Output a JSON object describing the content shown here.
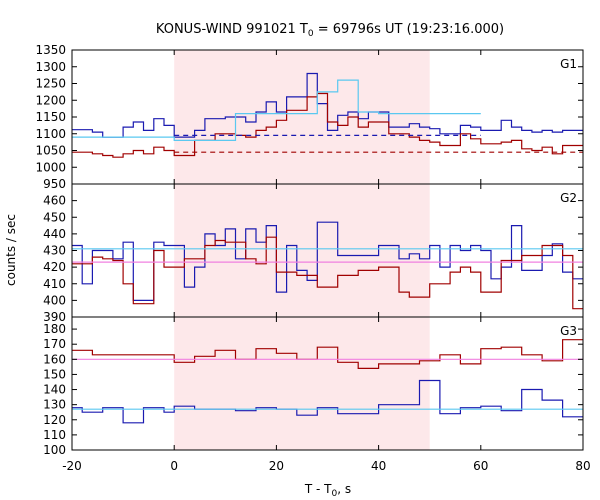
{
  "chart_data": {
    "type": "line",
    "title": {
      "main": "KONUS-WIND 991021 T",
      "sub": "0",
      "rest": " = 69796s UT (19:23:16.000)"
    },
    "xlabel": {
      "main": "T - T",
      "sub": "0",
      "rest": ", s"
    },
    "ylabel": "counts / sec",
    "xlim": [
      -20,
      80
    ],
    "xticks": [
      -20,
      0,
      20,
      40,
      60,
      80
    ],
    "shaded_interval": [
      0,
      50
    ],
    "colors": {
      "red": "#a00000",
      "blue": "#1a1ab0",
      "lightblue": "#5ac8f0",
      "pink": "#f080e0",
      "shade": "#fde8ea"
    },
    "bin_edges": [
      -20,
      -18,
      -16,
      -14,
      -12,
      -10,
      -8,
      -6,
      -4,
      -2,
      0,
      2,
      4,
      6,
      8,
      10,
      12,
      14,
      16,
      18,
      20,
      22,
      24,
      26,
      28,
      30,
      32,
      34,
      36,
      38,
      40,
      42,
      44,
      46,
      48,
      50,
      52,
      54,
      56,
      58,
      60,
      62,
      64,
      66,
      68,
      70,
      72,
      74,
      76,
      78,
      80
    ],
    "panels": [
      {
        "label": "G1",
        "ylim": [
          950,
          1350
        ],
        "yticks": [
          950,
          1000,
          1050,
          1100,
          1150,
          1200,
          1250,
          1300,
          1350
        ],
        "series": [
          {
            "color": "blue",
            "values": [
              1112,
              1112,
              1105,
              1090,
              1090,
              1120,
              1135,
              1110,
              1145,
              1125,
              1090,
              1090,
              1110,
              1145,
              1145,
              1150,
              1150,
              1135,
              1165,
              1195,
              1165,
              1210,
              1210,
              1280,
              1190,
              1110,
              1155,
              1165,
              1145,
              1165,
              1165,
              1120,
              1120,
              1130,
              1120,
              1115,
              1100,
              1100,
              1125,
              1120,
              1110,
              1110,
              1140,
              1120,
              1110,
              1105,
              1110,
              1105,
              1110,
              1110
            ]
          },
          {
            "color": "red",
            "values": [
              1045,
              1045,
              1040,
              1035,
              1030,
              1040,
              1050,
              1040,
              1060,
              1050,
              1035,
              1035,
              1080,
              1080,
              1100,
              1100,
              1095,
              1090,
              1110,
              1120,
              1140,
              1170,
              1170,
              1210,
              1220,
              1135,
              1125,
              1150,
              1120,
              1135,
              1135,
              1100,
              1100,
              1090,
              1080,
              1075,
              1065,
              1065,
              1100,
              1085,
              1070,
              1070,
              1075,
              1080,
              1055,
              1050,
              1060,
              1040,
              1065,
              1065
            ]
          },
          {
            "color": "lightblue",
            "values": [
              1090,
              1090,
              1090,
              1090,
              1090,
              1090,
              1090,
              1090,
              1090,
              1090,
              1080,
              1080,
              1080,
              1080,
              1080,
              1080,
              1160,
              1160,
              1160,
              1160,
              1160,
              1160,
              1160,
              1160,
              1225,
              1225,
              1260,
              1260,
              1165,
              1165,
              1160,
              1160,
              1160,
              1160,
              1160,
              1160,
              1160,
              1160,
              1160,
              1160
            ]
          },
          {
            "color": "blue",
            "dashed": true,
            "x": [
              0,
              60
            ],
            "y": [
              1095,
              1095
            ]
          },
          {
            "color": "red",
            "dashed": true,
            "x": [
              0,
              80
            ],
            "y": [
              1045,
              1045
            ]
          }
        ]
      },
      {
        "label": "G2",
        "ylim": [
          390,
          470
        ],
        "yticks": [
          390,
          400,
          410,
          420,
          430,
          440,
          450,
          460
        ],
        "series": [
          {
            "color": "blue",
            "values": [
              433,
              410,
              430,
              430,
              425,
              435,
              400,
              400,
              435,
              433,
              433,
              408,
              420,
              440,
              433,
              443,
              425,
              443,
              435,
              445,
              405,
              433,
              418,
              412,
              447,
              447,
              427,
              427,
              427,
              427,
              433,
              433,
              425,
              428,
              425,
              433,
              420,
              433,
              430,
              433,
              430,
              413,
              420,
              445,
              418,
              418,
              427,
              434,
              417,
              413
            ]
          },
          {
            "color": "red",
            "values": [
              422,
              422,
              426,
              425,
              424,
              410,
              398,
              398,
              430,
              420,
              420,
              425,
              425,
              433,
              436,
              435,
              435,
              425,
              422,
              438,
              417,
              417,
              415,
              415,
              408,
              408,
              415,
              415,
              418,
              418,
              420,
              420,
              405,
              402,
              402,
              410,
              410,
              417,
              420,
              417,
              405,
              405,
              424,
              424,
              427,
              427,
              433,
              433,
              427,
              395
            ]
          },
          {
            "color": "lightblue",
            "x": [
              -20,
              80
            ],
            "y": [
              431,
              431
            ]
          },
          {
            "color": "pink",
            "x": [
              -20,
              80
            ],
            "y": [
              423,
              423
            ]
          }
        ]
      },
      {
        "label": "G3",
        "ylim": [
          100,
          188
        ],
        "yticks": [
          100,
          110,
          120,
          130,
          140,
          150,
          160,
          170,
          180
        ],
        "series": [
          {
            "color": "red",
            "values": [
              166,
              166,
              163,
              163,
              163,
              163,
              163,
              163,
              163,
              163,
              158,
              158,
              162,
              162,
              166,
              166,
              160,
              160,
              167,
              167,
              164,
              164,
              160,
              160,
              168,
              168,
              158,
              158,
              154,
              154,
              157,
              157,
              157,
              157,
              159,
              159,
              163,
              163,
              157,
              157,
              167,
              167,
              168,
              168,
              163,
              163,
              159,
              159,
              173,
              173
            ]
          },
          {
            "color": "blue",
            "values": [
              128,
              125,
              125,
              128,
              128,
              118,
              118,
              128,
              128,
              125,
              129,
              129,
              127,
              127,
              127,
              127,
              126,
              126,
              128,
              128,
              127,
              127,
              123,
              123,
              128,
              128,
              124,
              124,
              124,
              124,
              130,
              130,
              130,
              130,
              146,
              146,
              124,
              124,
              128,
              128,
              129,
              129,
              126,
              126,
              140,
              140,
              133,
              133,
              122,
              122
            ]
          },
          {
            "color": "lightblue",
            "x": [
              -20,
              80
            ],
            "y": [
              127,
              127
            ]
          },
          {
            "color": "pink",
            "x": [
              -20,
              80
            ],
            "y": [
              160,
              160
            ]
          }
        ]
      }
    ]
  }
}
